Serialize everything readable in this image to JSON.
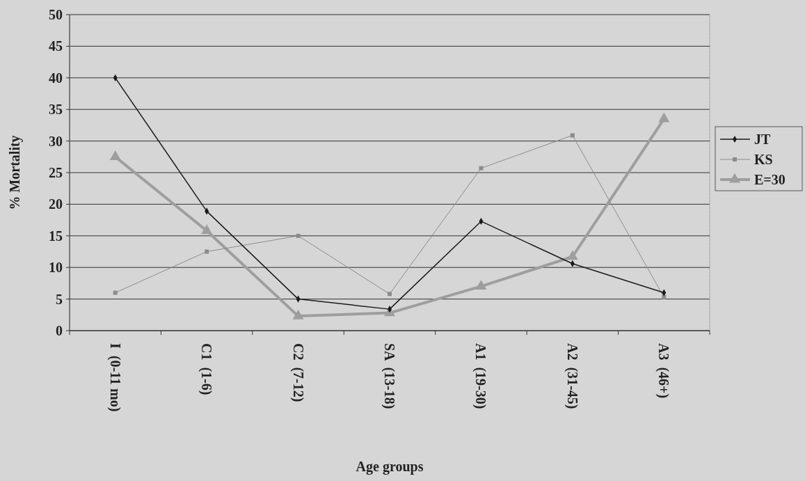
{
  "chart_data": {
    "type": "line",
    "xlabel": "Age groups",
    "ylabel": "% Mortality",
    "categories": [
      "I  (0-11 mo)",
      "C1  (1-6)",
      "C2  (7-12)",
      "SA  (13-18)",
      "A1  (19-30)",
      "A2  (31-45)",
      "A3  (46+)"
    ],
    "series": [
      {
        "name": "JT",
        "color": "#1a1a1a",
        "marker": "diamond",
        "values": [
          40,
          18.9,
          5.0,
          3.4,
          17.3,
          10.6,
          6.0
        ]
      },
      {
        "name": "KS",
        "color": "#8c8c8c",
        "marker": "square",
        "values": [
          6.0,
          12.5,
          15.0,
          5.8,
          25.7,
          30.9,
          5.3
        ]
      },
      {
        "name": "E=30",
        "color": "#9e9e9e",
        "marker": "triangle",
        "values": [
          27.5,
          15.8,
          2.3,
          2.8,
          7.0,
          11.7,
          33.5
        ]
      }
    ],
    "ylim": [
      0,
      50
    ],
    "yticks": [
      0,
      5,
      10,
      15,
      20,
      25,
      30,
      35,
      40,
      45,
      50
    ],
    "grid": "y",
    "legend": "right"
  }
}
